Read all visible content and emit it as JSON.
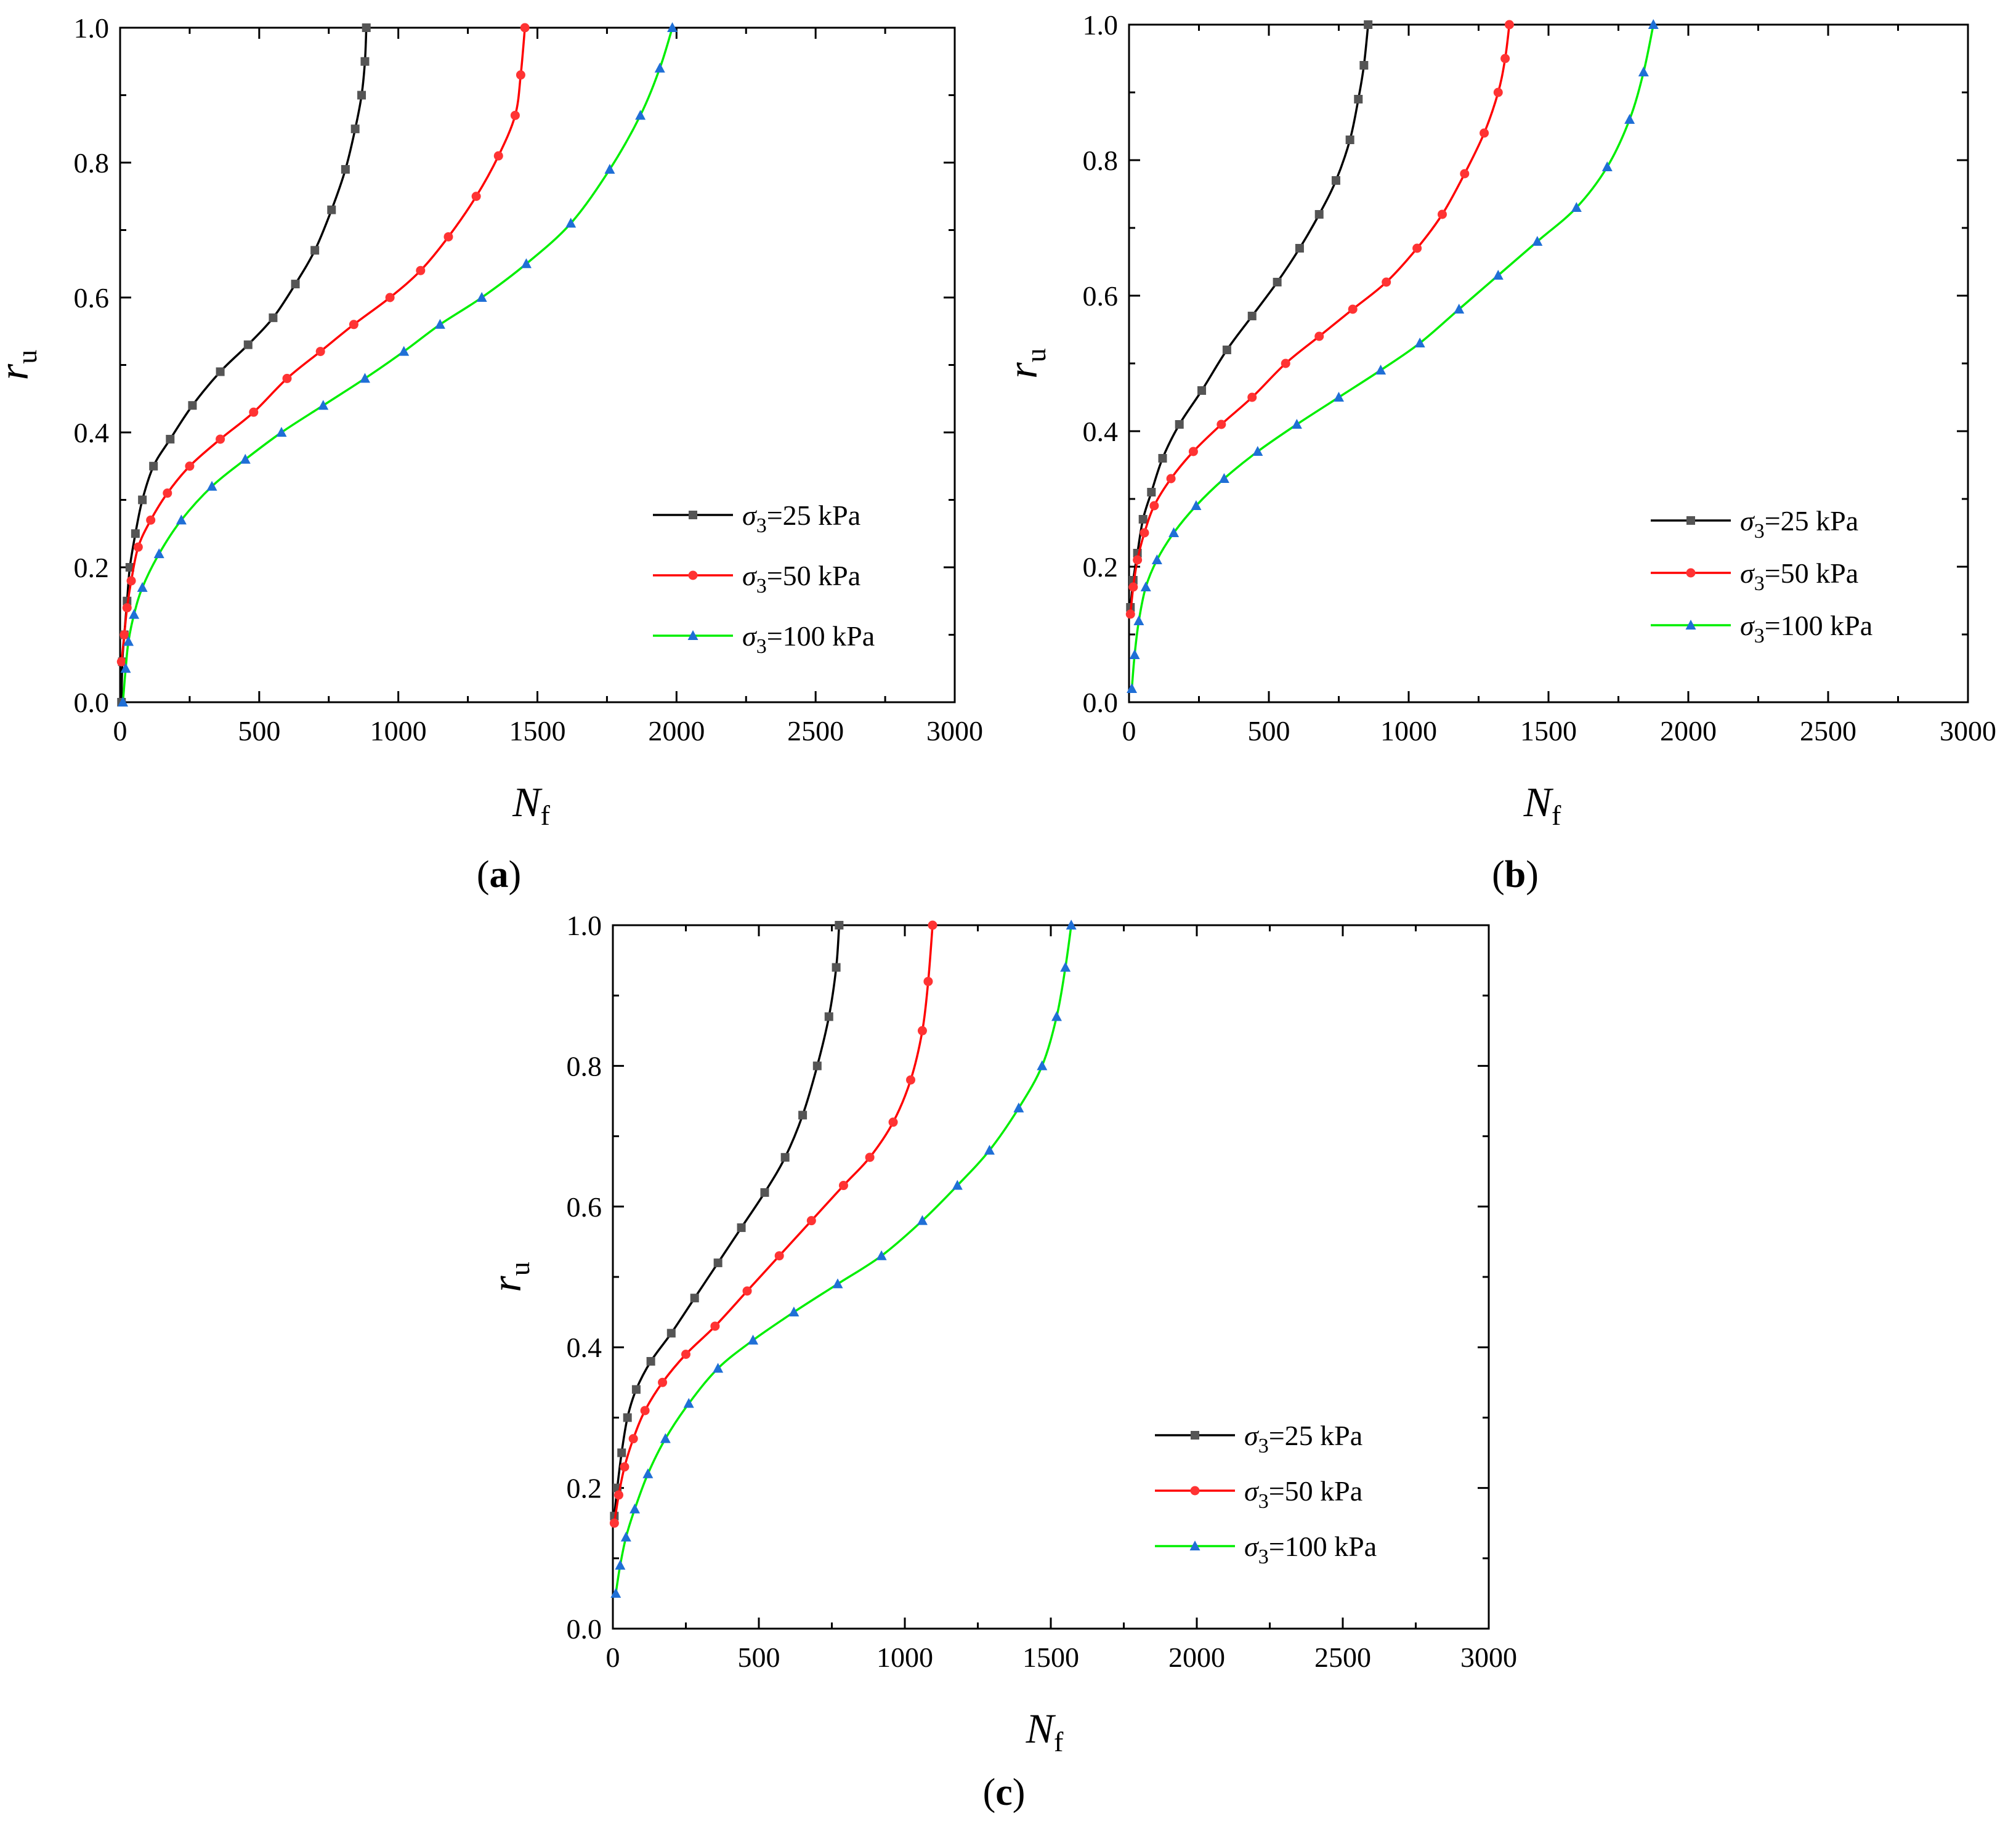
{
  "chart_data": [
    {
      "type": "line",
      "panel_label": "a",
      "xlabel": "N",
      "xlabel_sub": "f",
      "ylabel": "r",
      "ylabel_sub": "u",
      "xlim": [
        0,
        3000
      ],
      "ylim": [
        0,
        1.0
      ],
      "xticks": [
        "0",
        "500",
        "1000",
        "1500",
        "2000",
        "2500",
        "3000"
      ],
      "yticks": [
        "0.0",
        "0.2",
        "0.4",
        "0.6",
        "0.8",
        "1.0"
      ],
      "legend_position": "lower-right",
      "series": [
        {
          "name": "σ3=25 kPa",
          "sigma": "σ",
          "sub": "3",
          "value_text": "=25 kPa",
          "color": "#000000",
          "marker_color": "#555555",
          "marker": "square",
          "points": [
            [
              5,
              0.0
            ],
            [
              8,
              0.06
            ],
            [
              15,
              0.1
            ],
            [
              25,
              0.15
            ],
            [
              35,
              0.2
            ],
            [
              55,
              0.25
            ],
            [
              80,
              0.3
            ],
            [
              120,
              0.35
            ],
            [
              180,
              0.39
            ],
            [
              260,
              0.44
            ],
            [
              360,
              0.49
            ],
            [
              460,
              0.53
            ],
            [
              550,
              0.57
            ],
            [
              630,
              0.62
            ],
            [
              700,
              0.67
            ],
            [
              760,
              0.73
            ],
            [
              810,
              0.79
            ],
            [
              845,
              0.85
            ],
            [
              868,
              0.9
            ],
            [
              880,
              0.95
            ],
            [
              885,
              1.0
            ]
          ]
        },
        {
          "name": "σ3=50 kPa",
          "sigma": "σ",
          "sub": "3",
          "value_text": "=50 kPa",
          "color": "#ff0000",
          "marker_color": "#ff3333",
          "marker": "circle",
          "points": [
            [
              5,
              0.06
            ],
            [
              15,
              0.1
            ],
            [
              25,
              0.14
            ],
            [
              40,
              0.18
            ],
            [
              65,
              0.23
            ],
            [
              110,
              0.27
            ],
            [
              170,
              0.31
            ],
            [
              250,
              0.35
            ],
            [
              360,
              0.39
            ],
            [
              480,
              0.43
            ],
            [
              600,
              0.48
            ],
            [
              720,
              0.52
            ],
            [
              840,
              0.56
            ],
            [
              970,
              0.6
            ],
            [
              1080,
              0.64
            ],
            [
              1180,
              0.69
            ],
            [
              1280,
              0.75
            ],
            [
              1360,
              0.81
            ],
            [
              1420,
              0.87
            ],
            [
              1440,
              0.93
            ],
            [
              1455,
              1.0
            ]
          ]
        },
        {
          "name": "σ3=100 kPa",
          "sigma": "σ",
          "sub": "3",
          "value_text": "=100 kPa",
          "color": "#00ee00",
          "marker_color": "#1f6fd6",
          "marker": "triangle",
          "points": [
            [
              10,
              0.0
            ],
            [
              20,
              0.05
            ],
            [
              30,
              0.09
            ],
            [
              50,
              0.13
            ],
            [
              80,
              0.17
            ],
            [
              140,
              0.22
            ],
            [
              220,
              0.27
            ],
            [
              330,
              0.32
            ],
            [
              450,
              0.36
            ],
            [
              580,
              0.4
            ],
            [
              730,
              0.44
            ],
            [
              880,
              0.48
            ],
            [
              1020,
              0.52
            ],
            [
              1150,
              0.56
            ],
            [
              1300,
              0.6
            ],
            [
              1460,
              0.65
            ],
            [
              1620,
              0.71
            ],
            [
              1760,
              0.79
            ],
            [
              1870,
              0.87
            ],
            [
              1940,
              0.94
            ],
            [
              1985,
              1.0
            ]
          ]
        }
      ]
    },
    {
      "type": "line",
      "panel_label": "b",
      "xlabel": "N",
      "xlabel_sub": "f",
      "ylabel": "r",
      "ylabel_sub": "u",
      "xlim": [
        0,
        3000
      ],
      "ylim": [
        0,
        1.0
      ],
      "xticks": [
        "0",
        "500",
        "1000",
        "1500",
        "2000",
        "2500",
        "3000"
      ],
      "yticks": [
        "0.0",
        "0.2",
        "0.4",
        "0.6",
        "0.8",
        "1.0"
      ],
      "legend_position": "lower-right",
      "series": [
        {
          "name": "σ3=25 kPa",
          "sigma": "σ",
          "sub": "3",
          "value_text": "=25 kPa",
          "color": "#000000",
          "marker_color": "#555555",
          "marker": "square",
          "points": [
            [
              5,
              0.14
            ],
            [
              15,
              0.18
            ],
            [
              30,
              0.22
            ],
            [
              50,
              0.27
            ],
            [
              80,
              0.31
            ],
            [
              120,
              0.36
            ],
            [
              180,
              0.41
            ],
            [
              260,
              0.46
            ],
            [
              350,
              0.52
            ],
            [
              440,
              0.57
            ],
            [
              530,
              0.62
            ],
            [
              610,
              0.67
            ],
            [
              680,
              0.72
            ],
            [
              740,
              0.77
            ],
            [
              790,
              0.83
            ],
            [
              820,
              0.89
            ],
            [
              840,
              0.94
            ],
            [
              855,
              1.0
            ]
          ]
        },
        {
          "name": "σ3=50 kPa",
          "sigma": "σ",
          "sub": "3",
          "value_text": "=50 kPa",
          "color": "#ff0000",
          "marker_color": "#ff3333",
          "marker": "circle",
          "points": [
            [
              5,
              0.13
            ],
            [
              15,
              0.17
            ],
            [
              30,
              0.21
            ],
            [
              55,
              0.25
            ],
            [
              90,
              0.29
            ],
            [
              150,
              0.33
            ],
            [
              230,
              0.37
            ],
            [
              330,
              0.41
            ],
            [
              440,
              0.45
            ],
            [
              560,
              0.5
            ],
            [
              680,
              0.54
            ],
            [
              800,
              0.58
            ],
            [
              920,
              0.62
            ],
            [
              1030,
              0.67
            ],
            [
              1120,
              0.72
            ],
            [
              1200,
              0.78
            ],
            [
              1270,
              0.84
            ],
            [
              1320,
              0.9
            ],
            [
              1345,
              0.95
            ],
            [
              1360,
              1.0
            ]
          ]
        },
        {
          "name": "σ3=100 kPa",
          "sigma": "σ",
          "sub": "3",
          "value_text": "=100 kPa",
          "color": "#00ee00",
          "marker_color": "#1f6fd6",
          "marker": "triangle",
          "points": [
            [
              10,
              0.02
            ],
            [
              20,
              0.07
            ],
            [
              35,
              0.12
            ],
            [
              60,
              0.17
            ],
            [
              100,
              0.21
            ],
            [
              160,
              0.25
            ],
            [
              240,
              0.29
            ],
            [
              340,
              0.33
            ],
            [
              460,
              0.37
            ],
            [
              600,
              0.41
            ],
            [
              750,
              0.45
            ],
            [
              900,
              0.49
            ],
            [
              1040,
              0.53
            ],
            [
              1180,
              0.58
            ],
            [
              1320,
              0.63
            ],
            [
              1460,
              0.68
            ],
            [
              1600,
              0.73
            ],
            [
              1710,
              0.79
            ],
            [
              1790,
              0.86
            ],
            [
              1840,
              0.93
            ],
            [
              1875,
              1.0
            ]
          ]
        }
      ]
    },
    {
      "type": "line",
      "panel_label": "c",
      "xlabel": "N",
      "xlabel_sub": "f",
      "ylabel": "r",
      "ylabel_sub": "u",
      "xlim": [
        0,
        3000
      ],
      "ylim": [
        0,
        1.0
      ],
      "xticks": [
        "0",
        "500",
        "1000",
        "1500",
        "2000",
        "2500",
        "3000"
      ],
      "yticks": [
        "0.0",
        "0.2",
        "0.4",
        "0.6",
        "0.8",
        "1.0"
      ],
      "legend_position": "lower-right",
      "series": [
        {
          "name": "σ3=25 kPa",
          "sigma": "σ",
          "sub": "3",
          "value_text": "=25 kPa",
          "color": "#000000",
          "marker_color": "#555555",
          "marker": "square",
          "points": [
            [
              5,
              0.16
            ],
            [
              15,
              0.2
            ],
            [
              30,
              0.25
            ],
            [
              50,
              0.3
            ],
            [
              80,
              0.34
            ],
            [
              130,
              0.38
            ],
            [
              200,
              0.42
            ],
            [
              280,
              0.47
            ],
            [
              360,
              0.52
            ],
            [
              440,
              0.57
            ],
            [
              520,
              0.62
            ],
            [
              590,
              0.67
            ],
            [
              650,
              0.73
            ],
            [
              700,
              0.8
            ],
            [
              740,
              0.87
            ],
            [
              765,
              0.94
            ],
            [
              775,
              1.0
            ]
          ]
        },
        {
          "name": "σ3=50 kPa",
          "sigma": "σ",
          "sub": "3",
          "value_text": "=50 kPa",
          "color": "#ff0000",
          "marker_color": "#ff3333",
          "marker": "circle",
          "points": [
            [
              5,
              0.15
            ],
            [
              20,
              0.19
            ],
            [
              40,
              0.23
            ],
            [
              70,
              0.27
            ],
            [
              110,
              0.31
            ],
            [
              170,
              0.35
            ],
            [
              250,
              0.39
            ],
            [
              350,
              0.43
            ],
            [
              460,
              0.48
            ],
            [
              570,
              0.53
            ],
            [
              680,
              0.58
            ],
            [
              790,
              0.63
            ],
            [
              880,
              0.67
            ],
            [
              960,
              0.72
            ],
            [
              1020,
              0.78
            ],
            [
              1060,
              0.85
            ],
            [
              1080,
              0.92
            ],
            [
              1095,
              1.0
            ]
          ]
        },
        {
          "name": "σ3=100 kPa",
          "sigma": "σ",
          "sub": "3",
          "value_text": "=100 kPa",
          "color": "#00ee00",
          "marker_color": "#1f6fd6",
          "marker": "triangle",
          "points": [
            [
              10,
              0.05
            ],
            [
              25,
              0.09
            ],
            [
              45,
              0.13
            ],
            [
              75,
              0.17
            ],
            [
              120,
              0.22
            ],
            [
              180,
              0.27
            ],
            [
              260,
              0.32
            ],
            [
              360,
              0.37
            ],
            [
              480,
              0.41
            ],
            [
              620,
              0.45
            ],
            [
              770,
              0.49
            ],
            [
              920,
              0.53
            ],
            [
              1060,
              0.58
            ],
            [
              1180,
              0.63
            ],
            [
              1290,
              0.68
            ],
            [
              1390,
              0.74
            ],
            [
              1470,
              0.8
            ],
            [
              1520,
              0.87
            ],
            [
              1550,
              0.94
            ],
            [
              1570,
              1.0
            ]
          ]
        }
      ]
    }
  ]
}
